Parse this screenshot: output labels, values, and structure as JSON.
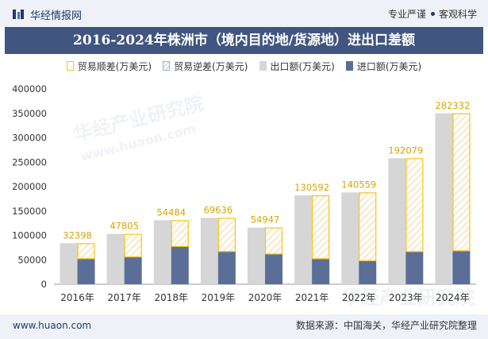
{
  "header": {
    "brand": "华经情报网",
    "tagline_left": "专业严谨",
    "tagline_right": "客观科学"
  },
  "title": "2016-2024年株洲市（境内目的地/货源地）进出口差额",
  "legend": {
    "surplus": "贸易顺差(万美元)",
    "deficit": "贸易逆差(万美元)",
    "export": "出口额(万美元)",
    "import": "进口额(万美元)"
  },
  "footer": {
    "url": "www.huaon.com",
    "source": "数据来源：中国海关，华经产业研究院整理"
  },
  "watermark": {
    "text1": "华经产业研究院",
    "text2": "www.huaon.com",
    "text3": "华经产业研究院"
  },
  "colors": {
    "surplus_border": "#f5c518",
    "export": "#d6d6d6",
    "import": "#5a6e98",
    "surplus_label": "#d4a600",
    "title_bg": "#40557f"
  },
  "chart_data": {
    "type": "bar",
    "categories": [
      "2016年",
      "2017年",
      "2018年",
      "2019年",
      "2020年",
      "2021年",
      "2022年",
      "2023年",
      "2024年"
    ],
    "series": [
      {
        "name": "出口额(万美元)",
        "values": [
          84000,
          103000,
          131000,
          136000,
          116000,
          182000,
          188000,
          258000,
          350000
        ]
      },
      {
        "name": "进口额(万美元)",
        "values": [
          51602,
          55195,
          76516,
          66364,
          61053,
          51408,
          47441,
          65921,
          67668
        ]
      },
      {
        "name": "贸易顺差(万美元)",
        "values": [
          32398,
          47805,
          54484,
          69636,
          54947,
          130592,
          140559,
          192079,
          282332
        ]
      },
      {
        "name": "贸易逆差(万美元)",
        "values": [
          0,
          0,
          0,
          0,
          0,
          0,
          0,
          0,
          0
        ]
      }
    ],
    "ylim": [
      0,
      400000
    ],
    "yticks": [
      0,
      50000,
      100000,
      150000,
      200000,
      250000,
      300000,
      350000,
      400000
    ],
    "grid": false,
    "legend_position": "top"
  }
}
